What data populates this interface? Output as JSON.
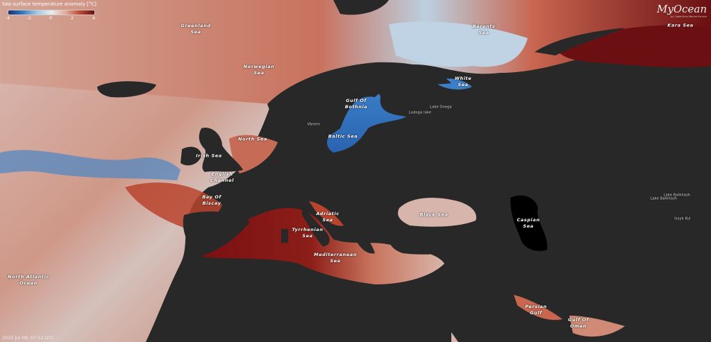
{
  "legend": {
    "title": "Sea surface temperature anomaly [°C]",
    "ticks": [
      "-4",
      "-2",
      "0",
      "2",
      "4"
    ],
    "colors": [
      "#1a2f6b",
      "#3a78c0",
      "#a8c8e0",
      "#ececec",
      "#e3a999",
      "#c0452d",
      "#6b0f12"
    ]
  },
  "logo": {
    "main": "MyOcean",
    "sub": "by Copernicus Marine Service"
  },
  "timestamp": "2025 Jul 08, 07:12 UTC",
  "map_colors": {
    "land": "#282828",
    "warm": "#c0452d",
    "hot": "#7a1012",
    "neutral": "#d9c4bf",
    "cold": "#3a78c0",
    "caspian": "#000000"
  },
  "labels": [
    {
      "text": "Greenland\nSea",
      "kind": "sea"
    },
    {
      "text": "Barents\nSea",
      "kind": "sea"
    },
    {
      "text": "Kara Sea",
      "kind": "sea"
    },
    {
      "text": "Norwegian\nSea",
      "kind": "sea"
    },
    {
      "text": "White\nSea",
      "kind": "sea"
    },
    {
      "text": "Gulf Of\nBothnia",
      "kind": "sea"
    },
    {
      "text": "Lake Onega",
      "kind": "lake"
    },
    {
      "text": "Ladoga lake",
      "kind": "lake"
    },
    {
      "text": "Vänern",
      "kind": "lake"
    },
    {
      "text": "North Sea",
      "kind": "sea"
    },
    {
      "text": "Baltic Sea",
      "kind": "sea"
    },
    {
      "text": "Irish Sea",
      "kind": "sea"
    },
    {
      "text": "English\nChannel",
      "kind": "sea"
    },
    {
      "text": "Bay Of\nBiscay",
      "kind": "sea"
    },
    {
      "text": "Adriatic\nSea",
      "kind": "sea"
    },
    {
      "text": "Black Sea",
      "kind": "sea"
    },
    {
      "text": "Caspian\nSea",
      "kind": "sea"
    },
    {
      "text": "Tyrrhenian\nSea",
      "kind": "sea"
    },
    {
      "text": "Mediterranean\nSea",
      "kind": "sea"
    },
    {
      "text": "North Atlantic\nOcean",
      "kind": "sea"
    },
    {
      "text": "Persian\nGulf",
      "kind": "sea"
    },
    {
      "text": "Gulf Of\nOman",
      "kind": "sea"
    },
    {
      "text": "Lake Balkhash",
      "kind": "lake"
    },
    {
      "text": "Lake Balkhash",
      "kind": "lake"
    },
    {
      "text": "Issyk Kul",
      "kind": "lake"
    }
  ]
}
